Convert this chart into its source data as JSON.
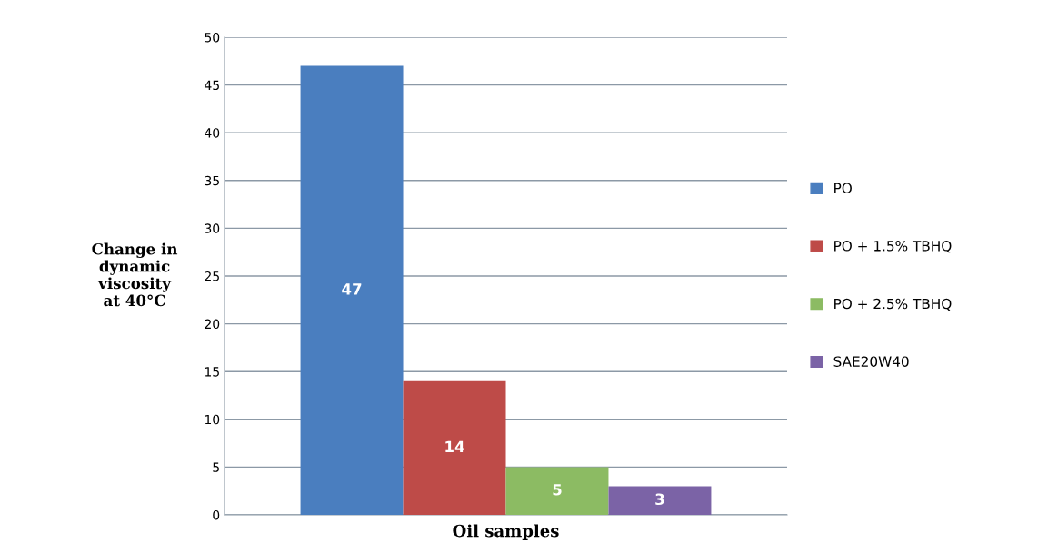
{
  "chart_data": {
    "type": "bar",
    "xlabel": "Oil samples",
    "ylabel": "Change in\ndynamic\nviscosity\nat 40°C",
    "categories": [
      null
    ],
    "series": [
      {
        "name": "PO",
        "color": "#4a7ebf",
        "values": [
          47
        ]
      },
      {
        "name": "PO + 1.5% TBHQ",
        "color": "#be4b48",
        "values": [
          14
        ]
      },
      {
        "name": "PO + 2.5% TBHQ",
        "color": "#8cbb63",
        "values": [
          5
        ]
      },
      {
        "name": "SAE20W40",
        "color": "#7b63a6",
        "values": [
          3
        ]
      }
    ],
    "ylim": [
      0,
      50
    ],
    "yticks": [
      0,
      5,
      10,
      15,
      20,
      25,
      30,
      35,
      40,
      45,
      50
    ],
    "grid": "y",
    "legend": "right",
    "data_labels": true
  }
}
